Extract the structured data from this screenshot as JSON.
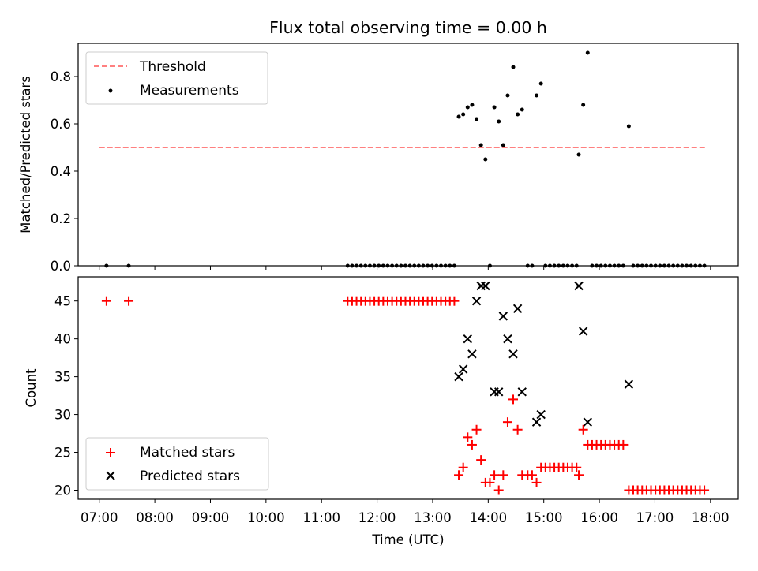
{
  "figure": {
    "title": "Flux total observing time = 0.00 h"
  },
  "chart_data": [
    {
      "type": "scatter",
      "title": "Flux total observing time = 0.00 h",
      "xlabel": "",
      "ylabel": "Matched/Predicted stars",
      "xlim": [
        6.62,
        18.5
      ],
      "ylim": [
        0,
        0.94
      ],
      "yticks": [
        0.0,
        0.2,
        0.4,
        0.6,
        0.8
      ],
      "ytick_labels": [
        "0.0",
        "0.2",
        "0.4",
        "0.6",
        "0.8"
      ],
      "legend_loc": "upper-left",
      "grid": false,
      "threshold": {
        "name": "Threshold",
        "color": "#ff8080",
        "value": 0.5,
        "x": [
          7.0,
          17.9
        ]
      },
      "series": [
        {
          "name": "Measurements",
          "color": "#000000",
          "points": [
            [
              7.13,
              0
            ],
            [
              7.53,
              0
            ],
            [
              11.47,
              0
            ],
            [
              11.55,
              0
            ],
            [
              11.63,
              0
            ],
            [
              11.71,
              0
            ],
            [
              11.79,
              0
            ],
            [
              11.87,
              0
            ],
            [
              11.95,
              0
            ],
            [
              12.03,
              0
            ],
            [
              12.11,
              0
            ],
            [
              12.19,
              0
            ],
            [
              12.27,
              0
            ],
            [
              12.35,
              0
            ],
            [
              12.43,
              0
            ],
            [
              12.51,
              0
            ],
            [
              12.59,
              0
            ],
            [
              12.67,
              0
            ],
            [
              12.75,
              0
            ],
            [
              12.83,
              0
            ],
            [
              12.91,
              0
            ],
            [
              12.99,
              0
            ],
            [
              13.07,
              0
            ],
            [
              13.15,
              0
            ],
            [
              13.23,
              0
            ],
            [
              13.31,
              0
            ],
            [
              13.39,
              0
            ],
            [
              13.47,
              0.63
            ],
            [
              13.55,
              0.64
            ],
            [
              13.63,
              0.67
            ],
            [
              13.71,
              0.68
            ],
            [
              13.79,
              0.62
            ],
            [
              13.87,
              0.51
            ],
            [
              13.95,
              0.45
            ],
            [
              14.03,
              0
            ],
            [
              14.11,
              0.67
            ],
            [
              14.19,
              0.61
            ],
            [
              14.27,
              0.51
            ],
            [
              14.35,
              0.72
            ],
            [
              14.45,
              0.84
            ],
            [
              14.53,
              0.64
            ],
            [
              14.61,
              0.66
            ],
            [
              14.71,
              0
            ],
            [
              14.79,
              0
            ],
            [
              14.87,
              0.72
            ],
            [
              14.95,
              0.77
            ],
            [
              15.03,
              0
            ],
            [
              15.11,
              0
            ],
            [
              15.19,
              0
            ],
            [
              15.27,
              0
            ],
            [
              15.35,
              0
            ],
            [
              15.43,
              0
            ],
            [
              15.51,
              0
            ],
            [
              15.59,
              0
            ],
            [
              15.63,
              0.47
            ],
            [
              15.71,
              0.68
            ],
            [
              15.79,
              0.9
            ],
            [
              15.87,
              0
            ],
            [
              15.95,
              0
            ],
            [
              16.03,
              0
            ],
            [
              16.11,
              0
            ],
            [
              16.19,
              0
            ],
            [
              16.27,
              0
            ],
            [
              16.35,
              0
            ],
            [
              16.43,
              0
            ],
            [
              16.53,
              0.59
            ],
            [
              16.61,
              0
            ],
            [
              16.69,
              0
            ],
            [
              16.77,
              0
            ],
            [
              16.85,
              0
            ],
            [
              16.93,
              0
            ],
            [
              17.01,
              0
            ],
            [
              17.09,
              0
            ],
            [
              17.17,
              0
            ],
            [
              17.25,
              0
            ],
            [
              17.33,
              0
            ],
            [
              17.41,
              0
            ],
            [
              17.49,
              0
            ],
            [
              17.57,
              0
            ],
            [
              17.65,
              0
            ],
            [
              17.73,
              0
            ],
            [
              17.81,
              0
            ],
            [
              17.89,
              0
            ]
          ]
        }
      ]
    },
    {
      "type": "scatter",
      "title": "",
      "xlabel": "Time (UTC)",
      "ylabel": "Count",
      "xlim": [
        6.62,
        18.5
      ],
      "ylim": [
        18.8,
        48.2
      ],
      "yticks": [
        20,
        25,
        30,
        35,
        40,
        45
      ],
      "ytick_labels": [
        "20",
        "25",
        "30",
        "35",
        "40",
        "45"
      ],
      "xticks": [
        7,
        8,
        9,
        10,
        11,
        12,
        13,
        14,
        15,
        16,
        17,
        18
      ],
      "xtick_labels": [
        "07:00",
        "08:00",
        "09:00",
        "10:00",
        "11:00",
        "12:00",
        "13:00",
        "14:00",
        "15:00",
        "16:00",
        "17:00",
        "18:00"
      ],
      "legend_loc": "lower-left",
      "grid": false,
      "series": [
        {
          "name": "Matched stars",
          "marker": "plus",
          "color": "#ff0000",
          "points": [
            [
              7.13,
              45
            ],
            [
              7.53,
              45
            ],
            [
              11.47,
              45
            ],
            [
              11.55,
              45
            ],
            [
              11.63,
              45
            ],
            [
              11.71,
              45
            ],
            [
              11.79,
              45
            ],
            [
              11.87,
              45
            ],
            [
              11.95,
              45
            ],
            [
              12.03,
              45
            ],
            [
              12.11,
              45
            ],
            [
              12.19,
              45
            ],
            [
              12.27,
              45
            ],
            [
              12.35,
              45
            ],
            [
              12.43,
              45
            ],
            [
              12.51,
              45
            ],
            [
              12.59,
              45
            ],
            [
              12.67,
              45
            ],
            [
              12.75,
              45
            ],
            [
              12.83,
              45
            ],
            [
              12.91,
              45
            ],
            [
              12.99,
              45
            ],
            [
              13.07,
              45
            ],
            [
              13.15,
              45
            ],
            [
              13.23,
              45
            ],
            [
              13.31,
              45
            ],
            [
              13.39,
              45
            ],
            [
              13.47,
              22
            ],
            [
              13.55,
              23
            ],
            [
              13.63,
              27
            ],
            [
              13.71,
              26
            ],
            [
              13.79,
              28
            ],
            [
              13.87,
              24
            ],
            [
              13.95,
              21
            ],
            [
              14.03,
              21
            ],
            [
              14.11,
              22
            ],
            [
              14.19,
              20
            ],
            [
              14.27,
              22
            ],
            [
              14.35,
              29
            ],
            [
              14.45,
              32
            ],
            [
              14.53,
              28
            ],
            [
              14.61,
              22
            ],
            [
              14.71,
              22
            ],
            [
              14.79,
              22
            ],
            [
              14.87,
              21
            ],
            [
              14.95,
              23
            ],
            [
              15.03,
              23
            ],
            [
              15.11,
              23
            ],
            [
              15.19,
              23
            ],
            [
              15.27,
              23
            ],
            [
              15.35,
              23
            ],
            [
              15.43,
              23
            ],
            [
              15.51,
              23
            ],
            [
              15.59,
              23
            ],
            [
              15.63,
              22
            ],
            [
              15.71,
              28
            ],
            [
              15.79,
              26
            ],
            [
              15.87,
              26
            ],
            [
              15.95,
              26
            ],
            [
              16.03,
              26
            ],
            [
              16.11,
              26
            ],
            [
              16.19,
              26
            ],
            [
              16.27,
              26
            ],
            [
              16.35,
              26
            ],
            [
              16.43,
              26
            ],
            [
              16.53,
              20
            ],
            [
              16.61,
              20
            ],
            [
              16.69,
              20
            ],
            [
              16.77,
              20
            ],
            [
              16.85,
              20
            ],
            [
              16.93,
              20
            ],
            [
              17.01,
              20
            ],
            [
              17.09,
              20
            ],
            [
              17.17,
              20
            ],
            [
              17.25,
              20
            ],
            [
              17.33,
              20
            ],
            [
              17.41,
              20
            ],
            [
              17.49,
              20
            ],
            [
              17.57,
              20
            ],
            [
              17.65,
              20
            ],
            [
              17.73,
              20
            ],
            [
              17.81,
              20
            ],
            [
              17.89,
              20
            ]
          ]
        },
        {
          "name": "Predicted stars",
          "marker": "x",
          "color": "#000000",
          "points": [
            [
              13.47,
              35
            ],
            [
              13.55,
              36
            ],
            [
              13.63,
              40
            ],
            [
              13.71,
              38
            ],
            [
              13.79,
              45
            ],
            [
              13.87,
              47
            ],
            [
              13.95,
              47
            ],
            [
              14.11,
              33
            ],
            [
              14.19,
              33
            ],
            [
              14.27,
              43
            ],
            [
              14.35,
              40
            ],
            [
              14.45,
              38
            ],
            [
              14.53,
              44
            ],
            [
              14.61,
              33
            ],
            [
              14.87,
              29
            ],
            [
              14.95,
              30
            ],
            [
              15.63,
              47
            ],
            [
              15.71,
              41
            ],
            [
              15.79,
              29
            ],
            [
              16.53,
              34
            ]
          ]
        }
      ]
    }
  ]
}
